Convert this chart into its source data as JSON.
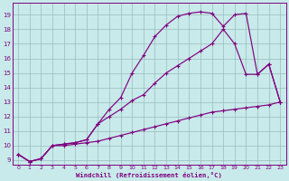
{
  "background_color": "#c8eaea",
  "line_color": "#800080",
  "grid_color": "#9bbcbc",
  "xlabel": "Windchill (Refroidissement éolien,°C)",
  "xlim": [
    -0.5,
    23.5
  ],
  "ylim": [
    8.7,
    19.8
  ],
  "yticks": [
    9,
    10,
    11,
    12,
    13,
    14,
    15,
    16,
    17,
    18,
    19
  ],
  "xticks": [
    0,
    1,
    2,
    3,
    4,
    5,
    6,
    7,
    8,
    9,
    10,
    11,
    12,
    13,
    14,
    15,
    16,
    17,
    18,
    19,
    20,
    21,
    22,
    23
  ],
  "curve_top_x": [
    0,
    1,
    2,
    3,
    4,
    5,
    6,
    7,
    8,
    9,
    10,
    11,
    12,
    13,
    14,
    15,
    16,
    17,
    18,
    19,
    20,
    21,
    22,
    23
  ],
  "curve_top_y": [
    9.4,
    8.9,
    9.1,
    10.0,
    10.1,
    10.2,
    10.4,
    11.5,
    12.5,
    13.3,
    15.0,
    16.2,
    17.5,
    18.3,
    18.9,
    19.1,
    19.2,
    19.1,
    18.2,
    19.0,
    19.1,
    14.9,
    15.6,
    13.0
  ],
  "curve_mid_x": [
    0,
    1,
    2,
    3,
    4,
    5,
    6,
    7,
    8,
    9,
    10,
    11,
    12,
    13,
    14,
    15,
    16,
    17,
    18,
    19,
    20,
    21,
    22,
    23
  ],
  "curve_mid_y": [
    9.4,
    8.9,
    9.1,
    10.0,
    10.1,
    10.2,
    10.4,
    11.5,
    12.0,
    12.5,
    13.1,
    13.5,
    14.3,
    15.0,
    15.5,
    16.0,
    16.5,
    17.0,
    18.0,
    17.0,
    14.9,
    14.9,
    15.6,
    13.0
  ],
  "curve_bot_x": [
    0,
    1,
    2,
    3,
    4,
    5,
    6,
    7,
    8,
    9,
    10,
    11,
    12,
    13,
    14,
    15,
    16,
    17,
    18,
    19,
    20,
    21,
    22,
    23
  ],
  "curve_bot_y": [
    9.4,
    8.9,
    9.1,
    10.0,
    10.0,
    10.1,
    10.2,
    10.3,
    10.5,
    10.7,
    10.9,
    11.1,
    11.3,
    11.5,
    11.7,
    11.9,
    12.1,
    12.3,
    12.4,
    12.5,
    12.6,
    12.7,
    12.8,
    13.0
  ]
}
